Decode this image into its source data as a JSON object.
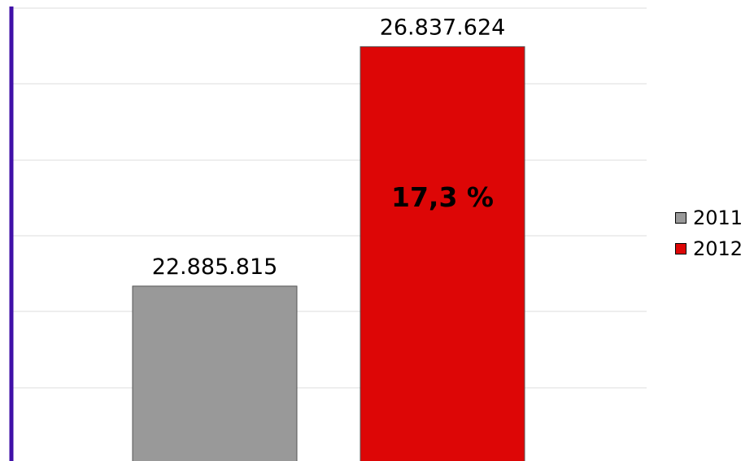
{
  "chart_data": {
    "type": "bar",
    "categories": [
      "2011",
      "2012"
    ],
    "values": [
      22885815,
      26837624
    ],
    "value_labels": [
      "22.885.815",
      "26.837.624"
    ],
    "annotation": "17,3 %",
    "title": "",
    "xlabel": "",
    "ylabel": "",
    "ylim": [
      20000000,
      27500000
    ],
    "grid": true,
    "legend_position": "right",
    "colors": [
      "#999999",
      "#dd0606"
    ],
    "axis_color": "#4010a8",
    "grid_color": "#dcdcdc",
    "edge_color": "#555555"
  },
  "legend": [
    {
      "label": "2011",
      "color": "#999999"
    },
    {
      "label": "2012",
      "color": "#dd0606"
    }
  ]
}
